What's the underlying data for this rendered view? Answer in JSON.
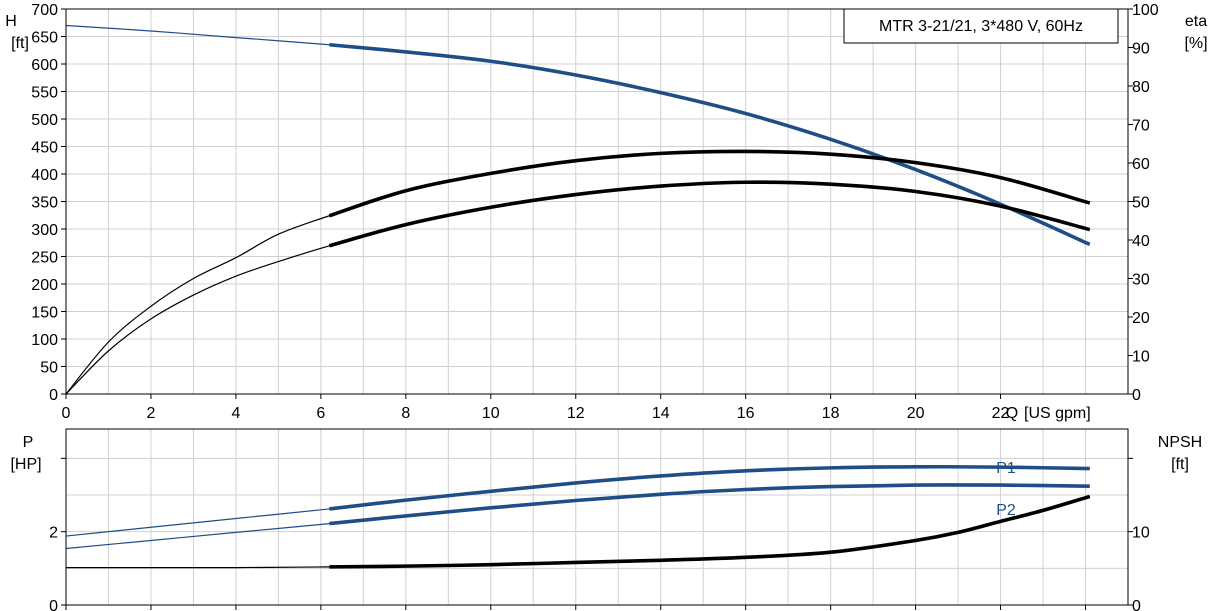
{
  "chart_data": [
    {
      "type": "line",
      "title": "MTR 3-21/21, 3*480 V, 60Hz",
      "x_axis": {
        "label": "Q [US gpm]",
        "label_parts": [
          "Q",
          "[US gpm]"
        ],
        "range": [
          0,
          25
        ],
        "ticks": [
          0,
          2,
          4,
          6,
          8,
          10,
          12,
          14,
          16,
          18,
          20,
          22
        ],
        "tick_labels": [
          "0",
          "2",
          "4",
          "6",
          "8",
          "10",
          "12",
          "14",
          "16",
          "18",
          "20",
          "22"
        ]
      },
      "y_left": {
        "label_top": "H",
        "label_unit": "[ft]",
        "range": [
          0,
          700
        ],
        "ticks": [
          0,
          50,
          100,
          150,
          200,
          250,
          300,
          350,
          400,
          450,
          500,
          550,
          600,
          650,
          700
        ],
        "tick_labels": [
          "0",
          "50",
          "100",
          "150",
          "200",
          "250",
          "300",
          "350",
          "400",
          "450",
          "500",
          "550",
          "600",
          "650",
          "700"
        ]
      },
      "y_right": {
        "label_top": "eta",
        "label_unit": "[%]",
        "range": [
          0,
          100
        ],
        "ticks": [
          0,
          10,
          20,
          30,
          40,
          50,
          60,
          70,
          80,
          90,
          100
        ],
        "tick_labels": [
          "0",
          "10",
          "20",
          "30",
          "40",
          "50",
          "60",
          "70",
          "80",
          "90",
          "100"
        ]
      },
      "grid": true,
      "operating_range": [
        6.2,
        24.1
      ],
      "series": [
        {
          "axis": "left",
          "color": "#1f4e87",
          "x": [
            0,
            2,
            4,
            6.2,
            8,
            10,
            12,
            14,
            16,
            18,
            20,
            22,
            24.1
          ],
          "y": [
            670,
            660,
            648,
            635,
            622,
            605,
            580,
            548,
            510,
            463,
            408,
            345,
            272
          ]
        },
        {
          "axis": "right",
          "color": "#000000",
          "x": [
            0,
            1,
            2,
            3,
            4,
            5,
            6.2,
            8,
            10,
            12,
            14,
            16,
            18,
            20,
            22,
            24.1
          ],
          "y": [
            0,
            13.5,
            22.8,
            30,
            35.4,
            41.5,
            46.3,
            52.8,
            57.3,
            60.6,
            62.5,
            63,
            62.3,
            60.1,
            56.2,
            49.6
          ]
        },
        {
          "axis": "right",
          "color": "#000000",
          "x": [
            0,
            1,
            2,
            3,
            4,
            5,
            6.2,
            8,
            10,
            12,
            14,
            16,
            18,
            20,
            22,
            24.1
          ],
          "y": [
            0,
            11.2,
            19.5,
            25.7,
            30.6,
            34.4,
            38.5,
            44,
            48.5,
            51.8,
            54,
            55,
            54.5,
            52.6,
            48.8,
            42.7
          ]
        }
      ]
    },
    {
      "type": "line",
      "x_axis": {
        "range": [
          0,
          25
        ],
        "ticks": [
          0,
          2,
          4,
          6,
          8,
          10,
          12,
          14,
          16,
          18,
          20,
          22,
          24
        ]
      },
      "y_left": {
        "label_top": "P",
        "label_unit": "[HP]",
        "range": [
          0,
          4.8
        ],
        "ticks": [
          0,
          2,
          4
        ],
        "tick_labels": [
          "0",
          "2",
          ""
        ]
      },
      "y_right": {
        "label_top": "NPSH",
        "label_unit": "[ft]",
        "range": [
          0,
          24
        ],
        "ticks": [
          0,
          10,
          20
        ],
        "tick_labels": [
          "0",
          "10",
          ""
        ]
      },
      "grid": true,
      "operating_range": [
        6.2,
        24.1
      ],
      "series": [
        {
          "name": "P1",
          "axis": "left",
          "color": "#1f4e87",
          "x": [
            0,
            2,
            4,
            6.2,
            8,
            10,
            12,
            14,
            16,
            18,
            20,
            22,
            24.1
          ],
          "y": [
            1.88,
            2.12,
            2.36,
            2.62,
            2.86,
            3.1,
            3.33,
            3.52,
            3.66,
            3.74,
            3.77,
            3.76,
            3.72
          ]
        },
        {
          "name": "P2",
          "axis": "left",
          "color": "#1f4e87",
          "x": [
            0,
            2,
            4,
            6.2,
            8,
            10,
            12,
            14,
            16,
            18,
            20,
            22,
            24.1
          ],
          "y": [
            1.54,
            1.76,
            1.98,
            2.22,
            2.43,
            2.65,
            2.85,
            3.02,
            3.15,
            3.23,
            3.27,
            3.27,
            3.24
          ]
        },
        {
          "axis": "right",
          "color": "#000000",
          "x": [
            0,
            4,
            6.2,
            8,
            10,
            12,
            14,
            16,
            18,
            20,
            21,
            22,
            23,
            24.1
          ],
          "y": [
            5.1,
            5.1,
            5.2,
            5.3,
            5.5,
            5.8,
            6.1,
            6.5,
            7.2,
            8.8,
            9.9,
            11.4,
            12.9,
            14.8
          ]
        }
      ]
    }
  ]
}
